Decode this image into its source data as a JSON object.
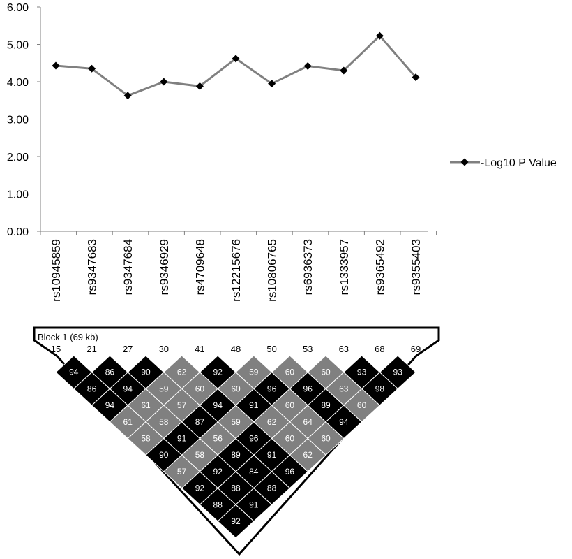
{
  "chart_data": {
    "type": "line",
    "title": "",
    "xlabel": "",
    "ylabel": "",
    "ylim": [
      0,
      6
    ],
    "yticks": [
      "0.00",
      "1.00",
      "2.00",
      "3.00",
      "4.00",
      "5.00",
      "6.00"
    ],
    "categories": [
      "rs10945859",
      "rs9347683",
      "rs9347684",
      "rs9346929",
      "rs4709648",
      "rs12215676",
      "rs10806765",
      "rs6936373",
      "rs1333957",
      "rs9365492",
      "rs9355403"
    ],
    "series": [
      {
        "name": "-Log10 P Value",
        "values": [
          4.43,
          4.35,
          3.63,
          4.0,
          3.88,
          4.62,
          3.95,
          4.42,
          4.3,
          5.23,
          4.12
        ]
      }
    ],
    "legend": "right",
    "grid": false,
    "colors": {
      "line": "#808080",
      "marker": "#000000"
    }
  },
  "ld_plot": {
    "block_label": "Block 1 (69 kb)",
    "positions": [
      "15",
      "21",
      "27",
      "30",
      "41",
      "48",
      "50",
      "53",
      "63",
      "68",
      "69"
    ],
    "rows": [
      [
        94,
        86,
        90,
        62,
        92,
        59,
        60,
        60,
        93,
        93
      ],
      [
        86,
        94,
        59,
        60,
        60,
        96,
        96,
        63,
        98
      ],
      [
        94,
        61,
        57,
        94,
        91,
        60,
        89,
        60
      ],
      [
        61,
        58,
        87,
        59,
        62,
        64,
        94
      ],
      [
        58,
        91,
        56,
        96,
        60,
        60
      ],
      [
        90,
        58,
        89,
        91,
        62
      ],
      [
        57,
        92,
        84,
        96
      ],
      [
        92,
        88,
        88
      ],
      [
        88,
        91
      ],
      [
        92
      ]
    ],
    "colors": {
      "strong": "#000000",
      "medium": "#808080",
      "outline": "#ffffff"
    }
  }
}
